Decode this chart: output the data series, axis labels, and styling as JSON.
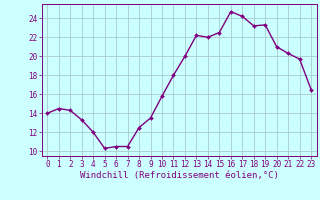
{
  "x": [
    0,
    1,
    2,
    3,
    4,
    5,
    6,
    7,
    8,
    9,
    10,
    11,
    12,
    13,
    14,
    15,
    16,
    17,
    18,
    19,
    20,
    21,
    22,
    23
  ],
  "y": [
    14.0,
    14.5,
    14.3,
    13.3,
    12.0,
    10.3,
    10.5,
    10.5,
    12.5,
    13.5,
    15.8,
    18.0,
    20.0,
    22.2,
    22.0,
    22.5,
    24.7,
    24.2,
    23.2,
    23.3,
    21.0,
    20.3,
    19.7,
    16.5
  ],
  "line_color": "#800080",
  "marker": "D",
  "markersize": 2.0,
  "linewidth": 1.0,
  "bg_color": "#ccffff",
  "grid_color": "#aacccc",
  "xlim": [
    -0.5,
    23.5
  ],
  "ylim": [
    9.5,
    25.5
  ],
  "yticks": [
    10,
    12,
    14,
    16,
    18,
    20,
    22,
    24
  ],
  "xticks": [
    0,
    1,
    2,
    3,
    4,
    5,
    6,
    7,
    8,
    9,
    10,
    11,
    12,
    13,
    14,
    15,
    16,
    17,
    18,
    19,
    20,
    21,
    22,
    23
  ],
  "tick_color": "#800080",
  "label_color": "#800080",
  "tick_fontsize": 5.5,
  "xlabel_fontsize": 6.5,
  "xlabel": "Windchill (Refroidissement éolien,°C)"
}
